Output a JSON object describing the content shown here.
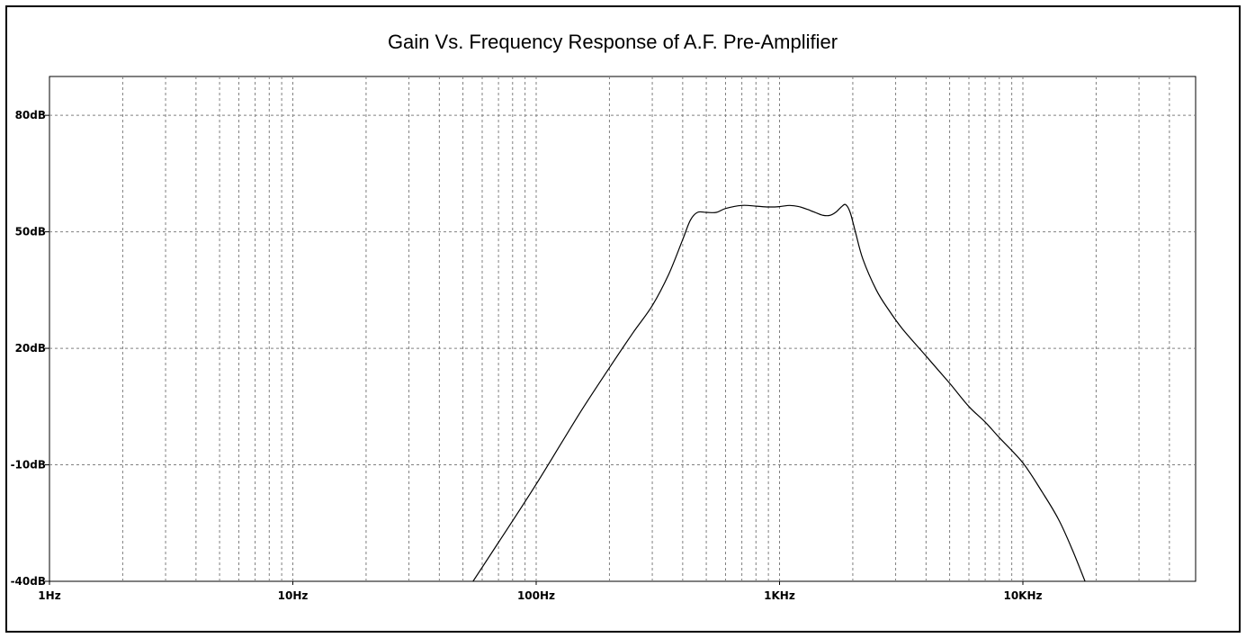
{
  "chart_data": {
    "type": "line",
    "title": "Gain Vs. Frequency Response of A.F. Pre-Amplifier",
    "xlabel": "",
    "ylabel": "",
    "x_scale": "log",
    "xlim": [
      1,
      50000
    ],
    "ylim": [
      -40,
      90
    ],
    "grid": true,
    "x_ticks": [
      {
        "value": 1,
        "label": "1Hz"
      },
      {
        "value": 10,
        "label": "10Hz"
      },
      {
        "value": 100,
        "label": "100Hz"
      },
      {
        "value": 1000,
        "label": "1KHz"
      },
      {
        "value": 10000,
        "label": "10KHz"
      }
    ],
    "y_ticks": [
      {
        "value": 80,
        "label": "80dB"
      },
      {
        "value": 50,
        "label": "50dB"
      },
      {
        "value": 20,
        "label": "20dB"
      },
      {
        "value": -10,
        "label": "-10dB"
      },
      {
        "value": -40,
        "label": "-40dB"
      }
    ],
    "series": [
      {
        "color": "#000000",
        "points": [
          [
            55,
            -40
          ],
          [
            70,
            -30
          ],
          [
            100,
            -15
          ],
          [
            150,
            3
          ],
          [
            200,
            15
          ],
          [
            250,
            24
          ],
          [
            300,
            31
          ],
          [
            350,
            39
          ],
          [
            400,
            48
          ],
          [
            430,
            53
          ],
          [
            460,
            55
          ],
          [
            500,
            55
          ],
          [
            550,
            55
          ],
          [
            600,
            56
          ],
          [
            700,
            56.8
          ],
          [
            800,
            56.6
          ],
          [
            900,
            56.4
          ],
          [
            1000,
            56.5
          ],
          [
            1100,
            56.8
          ],
          [
            1200,
            56.5
          ],
          [
            1300,
            55.8
          ],
          [
            1400,
            55
          ],
          [
            1500,
            54.3
          ],
          [
            1600,
            54.2
          ],
          [
            1700,
            55
          ],
          [
            1800,
            56.5
          ],
          [
            1870,
            57
          ],
          [
            1950,
            55
          ],
          [
            2050,
            50
          ],
          [
            2200,
            43
          ],
          [
            2500,
            35
          ],
          [
            2800,
            30
          ],
          [
            3200,
            25
          ],
          [
            4000,
            18
          ],
          [
            5000,
            11
          ],
          [
            6000,
            5
          ],
          [
            7000,
            1
          ],
          [
            8000,
            -3
          ],
          [
            10000,
            -9.5
          ],
          [
            12000,
            -17
          ],
          [
            14000,
            -24
          ],
          [
            16000,
            -32
          ],
          [
            18000,
            -40
          ]
        ]
      }
    ]
  }
}
